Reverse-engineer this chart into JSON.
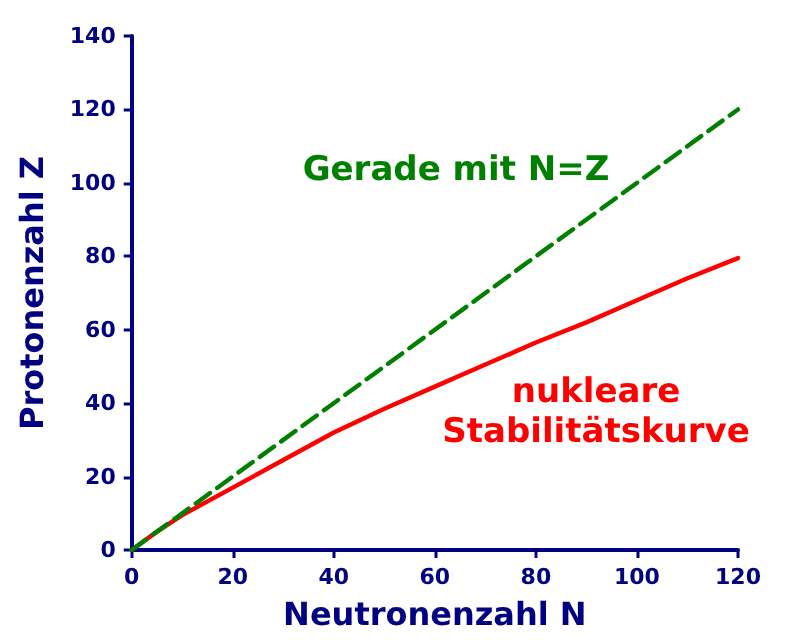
{
  "chart_data": {
    "type": "line",
    "xlabel": "Neutronenzahl N",
    "ylabel": "Protonenzahl Z",
    "xlim": [
      0,
      120
    ],
    "xticks": [
      0,
      20,
      40,
      60,
      80,
      100,
      120
    ],
    "ylim": [
      0,
      140
    ],
    "yticks": [
      0,
      20,
      40,
      60,
      80,
      100,
      120,
      140
    ],
    "grid": false,
    "legend": false,
    "marker": "none",
    "series": [
      {
        "name": "Gerade mit N=Z",
        "color": "#008000",
        "line_style": "dashed",
        "x": [
          0,
          120
        ],
        "values": [
          0,
          120
        ]
      },
      {
        "name": "nukleare Stabilitätskurve",
        "color": "#ff0000",
        "line_style": "solid",
        "x": [
          0,
          5,
          10,
          20,
          30,
          40,
          50,
          60,
          70,
          80,
          90,
          100,
          110,
          120
        ],
        "values": [
          0,
          5,
          9.5,
          17,
          24.5,
          32,
          38.5,
          44.5,
          50.5,
          56.5,
          62,
          68,
          74,
          79.5
        ]
      }
    ]
  }
}
